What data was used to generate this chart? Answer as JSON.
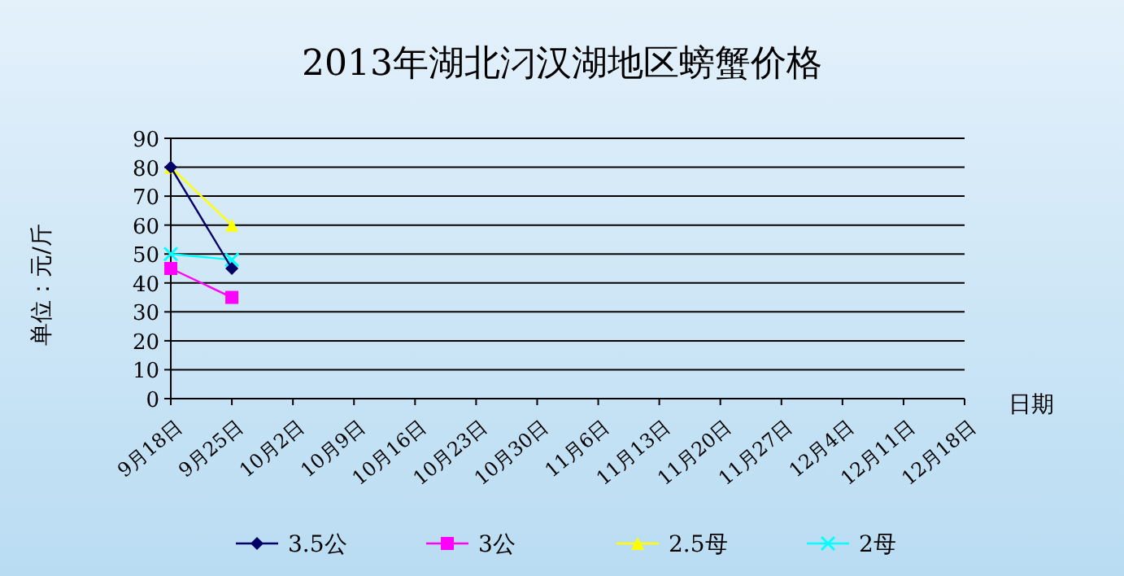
{
  "chart_data": {
    "type": "line",
    "title": "2013年湖北汈汉湖地区螃蟹价格",
    "ylabel": "单位：元/斤",
    "xlabel": "日期",
    "categories": [
      "9月18日",
      "9月25日",
      "10月2日",
      "10月9日",
      "10月16日",
      "10月23日",
      "10月30日",
      "11月6日",
      "11月13日",
      "11月20日",
      "11月27日",
      "12月4日",
      "12月11日",
      "12月18日"
    ],
    "series": [
      {
        "name": "3.5公",
        "color": "#000066",
        "marker": "diamond",
        "values": [
          80,
          45,
          null,
          null,
          null,
          null,
          null,
          null,
          null,
          null,
          null,
          null,
          null,
          null
        ]
      },
      {
        "name": "3公",
        "color": "#ff00ff",
        "marker": "square",
        "values": [
          45,
          35,
          null,
          null,
          null,
          null,
          null,
          null,
          null,
          null,
          null,
          null,
          null,
          null
        ]
      },
      {
        "name": "2.5母",
        "color": "#ffff00",
        "marker": "triangle",
        "values": [
          80,
          60,
          null,
          null,
          null,
          null,
          null,
          null,
          null,
          null,
          null,
          null,
          null,
          null
        ]
      },
      {
        "name": "2母",
        "color": "#00ffff",
        "marker": "cross",
        "values": [
          50,
          48,
          null,
          null,
          null,
          null,
          null,
          null,
          null,
          null,
          null,
          null,
          null,
          null
        ]
      }
    ],
    "ylim": [
      0,
      90
    ],
    "yticks": [
      0,
      10,
      20,
      30,
      40,
      50,
      60,
      70,
      80,
      90
    ],
    "grid": "y",
    "legend": "bottom"
  }
}
